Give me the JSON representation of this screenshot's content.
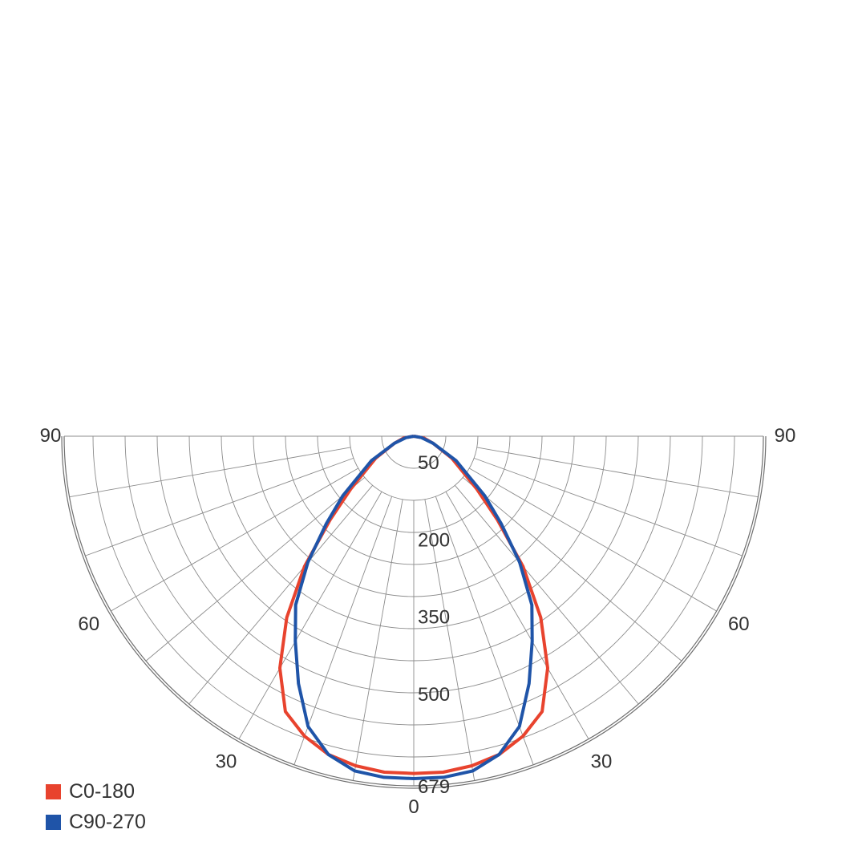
{
  "chart_data": {
    "type": "polar",
    "radial_max": 679,
    "radial_ticks": [
      50,
      200,
      350,
      500,
      679
    ],
    "angle_labels": [
      {
        "text": "90",
        "angle": -90
      },
      {
        "text": "60",
        "angle": -60
      },
      {
        "text": "30",
        "angle": -30
      },
      {
        "text": "0",
        "angle": 0
      },
      {
        "text": "30",
        "angle": 30
      },
      {
        "text": "60",
        "angle": 60
      },
      {
        "text": "90",
        "angle": 90
      }
    ],
    "series": [
      {
        "name": "C0-180",
        "color": "#e8432e",
        "angles": [
          -90,
          -80,
          -70,
          -60,
          -50,
          -45,
          -40,
          -35,
          -30,
          -25,
          -20,
          -15,
          -10,
          -5,
          0,
          5,
          10,
          15,
          20,
          25,
          30,
          35,
          40,
          45,
          50,
          60,
          70,
          80,
          90
        ],
        "values": [
          0,
          20,
          40,
          85,
          160,
          230,
          330,
          430,
          520,
          590,
          620,
          640,
          650,
          655,
          655,
          655,
          650,
          640,
          620,
          590,
          520,
          430,
          330,
          230,
          160,
          85,
          40,
          20,
          0
        ]
      },
      {
        "name": "C90-270",
        "color": "#1f54a8",
        "angles": [
          -90,
          -80,
          -70,
          -60,
          -50,
          -45,
          -40,
          -35,
          -30,
          -25,
          -20,
          -15,
          -10,
          -5,
          0,
          5,
          10,
          15,
          20,
          25,
          30,
          35,
          40,
          45,
          50,
          60,
          70,
          80,
          90
        ],
        "values": [
          0,
          15,
          40,
          95,
          180,
          240,
          320,
          400,
          460,
          530,
          600,
          640,
          660,
          665,
          665,
          665,
          660,
          640,
          600,
          530,
          460,
          400,
          320,
          240,
          180,
          95,
          40,
          15,
          0
        ]
      }
    ]
  }
}
